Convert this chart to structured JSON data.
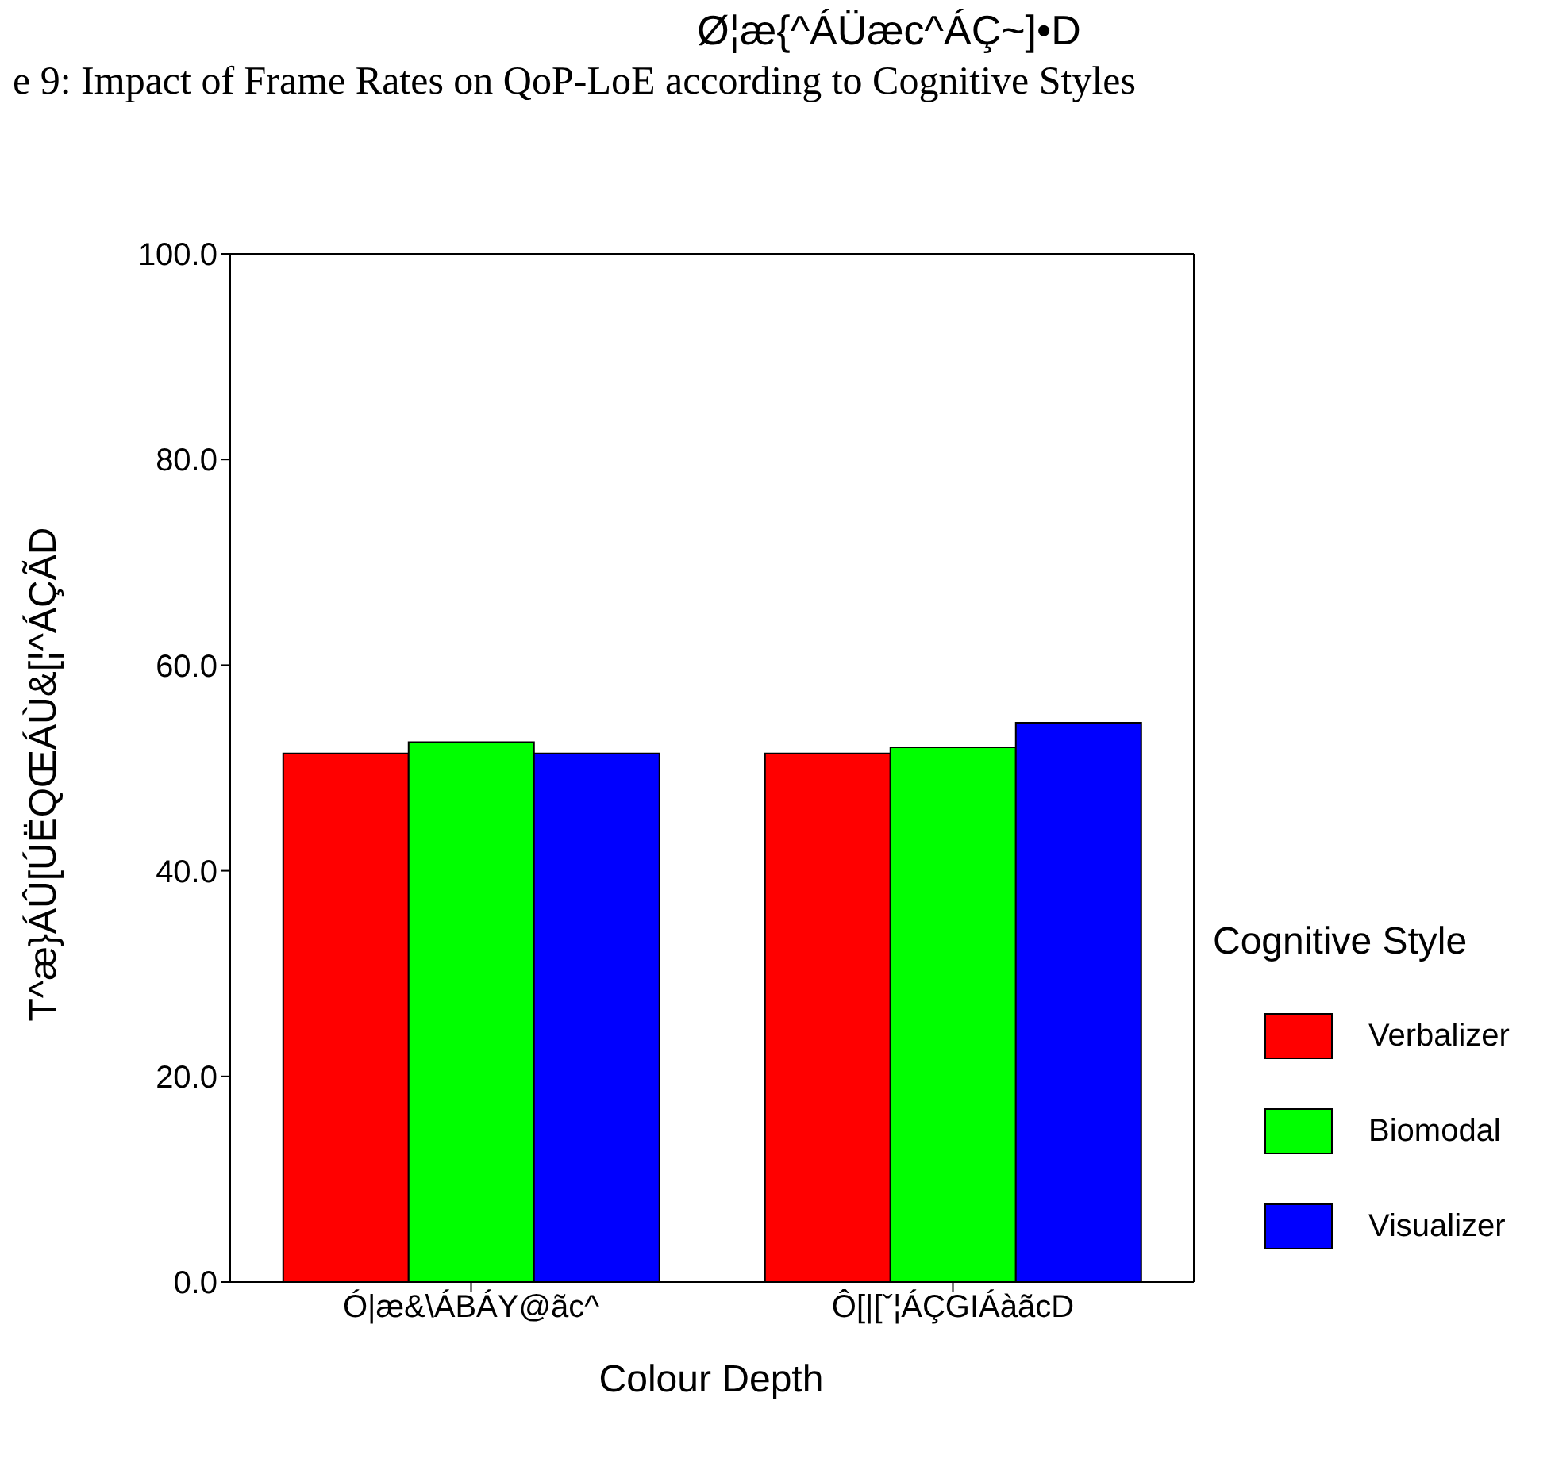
{
  "chart_data": {
    "type": "bar",
    "title": "e 9: Impact of Frame Rates on QoP-LoE according to Cognitive Styles",
    "subtitle": "Ø¦æ{^ÁÜæc^ÁÇ~]•D",
    "xlabel": "Colour Depth",
    "ylabel": "T^æ}ÁÛ[ÚËQŒÁÙ&[¦^ÁÇÃD",
    "legend_title": "Cognitive Style",
    "categories": [
      "Ó|æ&\\ÁBÁY@ãc^",
      "Ô[|[ˇ¦ÁÇGIÁàãcD"
    ],
    "series": [
      {
        "name": "Verbalizer",
        "color": "#ff0000",
        "values": [
          51.4,
          51.4
        ]
      },
      {
        "name": "Biomodal",
        "color": "#00ff00",
        "values": [
          52.5,
          52.0
        ]
      },
      {
        "name": "Visualizer",
        "color": "#0000ff",
        "values": [
          51.4,
          54.4
        ]
      }
    ],
    "ylim": [
      0,
      100
    ],
    "yticks": [
      {
        "value": 0,
        "label": "0.0"
      },
      {
        "value": 20,
        "label": "20.0"
      },
      {
        "value": 40,
        "label": "40.0"
      },
      {
        "value": 60,
        "label": "60.0"
      },
      {
        "value": 80,
        "label": "80.0"
      },
      {
        "value": 100,
        "label": "100.0"
      }
    ],
    "grid": false,
    "legend": "right"
  }
}
